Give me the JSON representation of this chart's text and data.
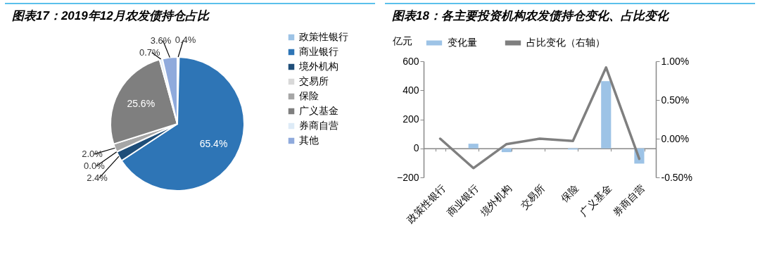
{
  "chart_data": [
    {
      "type": "pie",
      "title": "图表17：2019年12月农发债持仓占比",
      "categories": [
        "政策性银行",
        "商业银行",
        "境外机构",
        "交易所",
        "保险",
        "广义基金",
        "券商自营",
        "其他"
      ],
      "values": [
        0.4,
        65.4,
        2.4,
        0.0,
        2.0,
        25.6,
        0.7,
        3.6
      ],
      "value_labels": [
        "0.4%",
        "65.4%",
        "2.4%",
        "0.0%",
        "2.0%",
        "25.6%",
        "0.7%",
        "3.6%"
      ],
      "colors": [
        "#9dc3e6",
        "#2e75b6",
        "#1f4e79",
        "#d9d9d9",
        "#a6a6a6",
        "#7f7f7f",
        "#deebf7",
        "#8faadc"
      ],
      "legend": "right"
    },
    {
      "type": "bar",
      "title": "图表18：各主要投资机构农发债持仓变化、占比变化",
      "categories": [
        "政策性银行",
        "商业银行",
        "境外机构",
        "交易所",
        "保险",
        "广义基金",
        "券商自营"
      ],
      "series": [
        {
          "name": "变化量",
          "type": "bar",
          "color": "#9dc3e6",
          "values": [
            0,
            32,
            -26,
            0,
            -8,
            463,
            -105
          ]
        },
        {
          "name": "占比变化（右轴）",
          "type": "line",
          "axis": "y2",
          "color": "#7f7f7f",
          "values": [
            0.0,
            -0.38,
            -0.07,
            0.0,
            -0.03,
            0.92,
            -0.26
          ]
        }
      ],
      "ylabel": "亿元",
      "ylim": [
        -200,
        600
      ],
      "yticks": [
        -200,
        0,
        200,
        400,
        600
      ],
      "y2lim": [
        -0.5,
        1.0
      ],
      "y2ticks": [
        {
          "value": -0.5,
          "label": "-0.50%"
        },
        {
          "value": 0,
          "label": "0.00%"
        },
        {
          "value": 0.5,
          "label": "0.50%"
        },
        {
          "value": 1.0,
          "label": "1.00%"
        }
      ],
      "legend": "top"
    }
  ]
}
